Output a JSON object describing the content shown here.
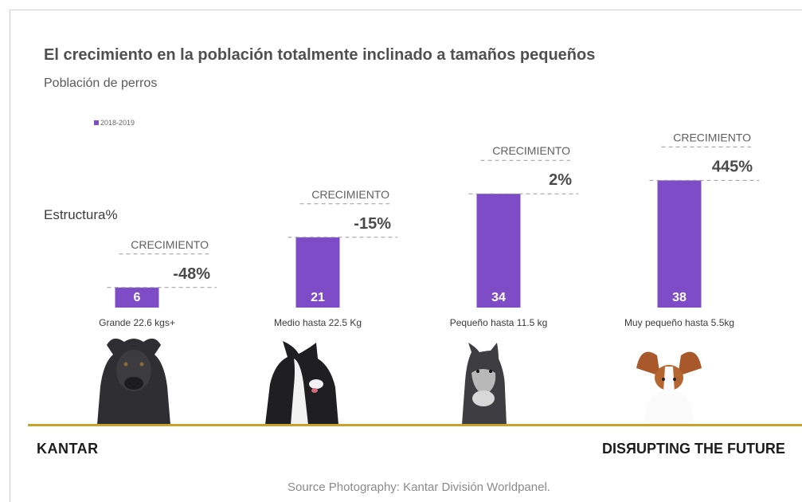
{
  "title": "El crecimiento en la población totalmente inclinado a tamaños pequeños",
  "subtitle": "Población de perros",
  "structure_label": "Estructura%",
  "legend": {
    "label": "2018-2019"
  },
  "colors": {
    "bar": "#7d4cc6",
    "gold_line": "#c9a227",
    "text_grey": "#5f5f5f"
  },
  "chart_data": {
    "type": "bar",
    "categories": [
      "Grande 22.6 kgs+",
      "Medio hasta 22.5 Kg",
      "Pequeño hasta 11.5 kg",
      "Muy pequeño hasta 5.5kg"
    ],
    "series": [
      {
        "name": "2018-2019",
        "values": [
          6,
          21,
          34,
          38
        ]
      }
    ],
    "growth_label": "CRECIMIENTO",
    "growth": [
      "-48%",
      "-15%",
      "2%",
      "445%"
    ],
    "ylim": [
      0,
      40
    ]
  },
  "images": [
    {
      "name": "cane-corso-dog",
      "caption": ""
    },
    {
      "name": "border-collie-dog",
      "caption": ""
    },
    {
      "name": "schnauzer-dog",
      "caption": ""
    },
    {
      "name": "papillon-dog",
      "caption": ""
    }
  ],
  "brand_left": "KANTAR",
  "brand_right": "DISЯUPTING THE FUTURE",
  "source": "Source Photography: Kantar División Worldpanel."
}
